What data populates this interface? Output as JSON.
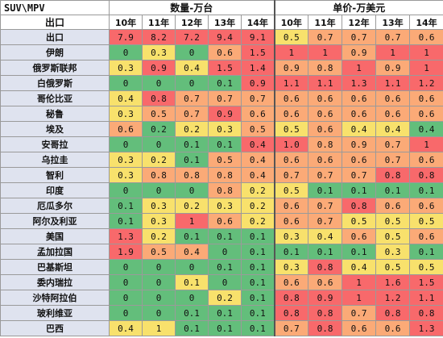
{
  "header": {
    "corner_top": "SUV\\MPV",
    "corner_bottom": "出口",
    "group_qty": "数量-万台",
    "group_price": "单价-万美元",
    "years": [
      "10年",
      "11年",
      "12年",
      "13年",
      "14年"
    ]
  },
  "colors": {
    "g": "#63be7b",
    "lg": "#a9d27f",
    "y": "#f8e16c",
    "o": "#fbaa77",
    "r": "#f8696b",
    "row_label_bg": "#dfe3ef"
  },
  "rows": [
    {
      "name": "出口",
      "qty": [
        "7.9",
        "8.2",
        "7.2",
        "9.4",
        "9.1"
      ],
      "price": [
        "0.5",
        "0.7",
        "0.7",
        "0.7",
        "0.6"
      ]
    },
    {
      "name": "伊朗",
      "qty": [
        "0",
        "0.3",
        "0",
        "0.6",
        "1.5"
      ],
      "price": [
        "1",
        "1",
        "0.9",
        "1",
        "1"
      ]
    },
    {
      "name": "俄罗斯联邦",
      "qty": [
        "0.3",
        "0.9",
        "0.4",
        "1.5",
        "1.4"
      ],
      "price": [
        "0.9",
        "0.8",
        "1",
        "0.9",
        "1"
      ]
    },
    {
      "name": "白俄罗斯",
      "qty": [
        "0",
        "0",
        "0",
        "0.1",
        "0.9"
      ],
      "price": [
        "1.1",
        "1.1",
        "1.3",
        "1.1",
        "1.2"
      ]
    },
    {
      "name": "哥伦比亚",
      "qty": [
        "0.4",
        "0.8",
        "0.7",
        "0.7",
        "0.7"
      ],
      "price": [
        "0.6",
        "0.6",
        "0.6",
        "0.6",
        "0.6"
      ]
    },
    {
      "name": "秘鲁",
      "qty": [
        "0.3",
        "0.5",
        "0.7",
        "0.9",
        "0.6"
      ],
      "price": [
        "0.6",
        "0.6",
        "0.6",
        "0.6",
        "0.6"
      ]
    },
    {
      "name": "埃及",
      "qty": [
        "0.6",
        "0.2",
        "0.2",
        "0.3",
        "0.5"
      ],
      "price": [
        "0.5",
        "0.6",
        "0.4",
        "0.4",
        "0.4"
      ]
    },
    {
      "name": "安哥拉",
      "qty": [
        "0",
        "0",
        "0.1",
        "0.1",
        "0.4"
      ],
      "price": [
        "1.0",
        "0.8",
        "0.9",
        "0.7",
        "1"
      ]
    },
    {
      "name": "乌拉圭",
      "qty": [
        "0.3",
        "0.2",
        "0.1",
        "0.5",
        "0.4"
      ],
      "price": [
        "0.6",
        "0.6",
        "0.6",
        "0.7",
        "0.6"
      ]
    },
    {
      "name": "智利",
      "qty": [
        "0.3",
        "0.8",
        "0.8",
        "0.8",
        "0.4"
      ],
      "price": [
        "0.7",
        "0.7",
        "0.7",
        "0.8",
        "0.8"
      ]
    },
    {
      "name": "印度",
      "qty": [
        "0",
        "0",
        "0",
        "0.8",
        "0.2"
      ],
      "price": [
        "0.5",
        "0.1",
        "0.1",
        "0.1",
        "0.1"
      ]
    },
    {
      "name": "厄瓜多尔",
      "qty": [
        "0.1",
        "0.3",
        "0.2",
        "0.3",
        "0.2"
      ],
      "price": [
        "0.6",
        "0.7",
        "0.8",
        "0.6",
        "0.6"
      ]
    },
    {
      "name": "阿尔及利亚",
      "qty": [
        "0.1",
        "0.3",
        "1",
        "0.6",
        "0.2"
      ],
      "price": [
        "0.6",
        "0.7",
        "0.5",
        "0.5",
        "0.5"
      ]
    },
    {
      "name": "美国",
      "qty": [
        "1.3",
        "0.2",
        "0.1",
        "0.1",
        "0.1"
      ],
      "price": [
        "0.3",
        "0.4",
        "0.6",
        "0.5",
        "0.6"
      ]
    },
    {
      "name": "孟加拉国",
      "qty": [
        "1.9",
        "0.5",
        "0.4",
        "0",
        "0.1"
      ],
      "price": [
        "0.1",
        "0.1",
        "0.1",
        "0.3",
        "0.1"
      ]
    },
    {
      "name": "巴基斯坦",
      "qty": [
        "0",
        "0",
        "0",
        "0.1",
        "0.1"
      ],
      "price": [
        "0.3",
        "0.8",
        "0.4",
        "0.5",
        "0.5"
      ]
    },
    {
      "name": "委内瑞拉",
      "qty": [
        "0",
        "0",
        "0.1",
        "0",
        "0.1"
      ],
      "price": [
        "0.6",
        "0.6",
        "1",
        "1.6",
        "1.5"
      ]
    },
    {
      "name": "沙特阿拉伯",
      "qty": [
        "0",
        "0",
        "0",
        "0.2",
        "0.1"
      ],
      "price": [
        "0.8",
        "0.9",
        "1",
        "1.2",
        "1.1"
      ]
    },
    {
      "name": "玻利维亚",
      "qty": [
        "0",
        "0",
        "0.1",
        "0.1",
        "0.1"
      ],
      "price": [
        "0.8",
        "0.8",
        "0.7",
        "0.8",
        "0.8"
      ]
    },
    {
      "name": "巴西",
      "qty": [
        "0.4",
        "1",
        "0.1",
        "0.1",
        "0.1"
      ],
      "price": [
        "0.7",
        "0.8",
        "0.6",
        "0.6",
        "1.3"
      ]
    }
  ],
  "cell_colors": [
    {
      "qty": [
        "r",
        "r",
        "r",
        "r",
        "r"
      ],
      "price": [
        "y",
        "o",
        "o",
        "o",
        "o"
      ]
    },
    {
      "qty": [
        "g",
        "y",
        "g",
        "o",
        "r"
      ],
      "price": [
        "r",
        "r",
        "o",
        "r",
        "r"
      ]
    },
    {
      "qty": [
        "y",
        "r",
        "y",
        "r",
        "r"
      ],
      "price": [
        "o",
        "o",
        "r",
        "o",
        "r"
      ]
    },
    {
      "qty": [
        "g",
        "g",
        "g",
        "g",
        "r"
      ],
      "price": [
        "r",
        "r",
        "r",
        "r",
        "r"
      ]
    },
    {
      "qty": [
        "y",
        "r",
        "o",
        "o",
        "o"
      ],
      "price": [
        "o",
        "o",
        "o",
        "o",
        "o"
      ]
    },
    {
      "qty": [
        "y",
        "o",
        "o",
        "r",
        "o"
      ],
      "price": [
        "o",
        "o",
        "o",
        "o",
        "o"
      ]
    },
    {
      "qty": [
        "o",
        "g",
        "y",
        "y",
        "o"
      ],
      "price": [
        "y",
        "o",
        "y",
        "y",
        "g"
      ]
    },
    {
      "qty": [
        "g",
        "g",
        "g",
        "g",
        "r"
      ],
      "price": [
        "r",
        "o",
        "o",
        "o",
        "r"
      ]
    },
    {
      "qty": [
        "y",
        "y",
        "g",
        "o",
        "o"
      ],
      "price": [
        "o",
        "o",
        "o",
        "o",
        "o"
      ]
    },
    {
      "qty": [
        "y",
        "o",
        "o",
        "o",
        "o"
      ],
      "price": [
        "o",
        "o",
        "o",
        "r",
        "r"
      ]
    },
    {
      "qty": [
        "g",
        "g",
        "g",
        "o",
        "y"
      ],
      "price": [
        "y",
        "g",
        "g",
        "g",
        "g"
      ]
    },
    {
      "qty": [
        "g",
        "y",
        "y",
        "y",
        "y"
      ],
      "price": [
        "o",
        "o",
        "r",
        "o",
        "o"
      ]
    },
    {
      "qty": [
        "g",
        "y",
        "r",
        "o",
        "y"
      ],
      "price": [
        "o",
        "o",
        "y",
        "y",
        "y"
      ]
    },
    {
      "qty": [
        "r",
        "y",
        "g",
        "g",
        "g"
      ],
      "price": [
        "y",
        "y",
        "o",
        "y",
        "o"
      ]
    },
    {
      "qty": [
        "r",
        "o",
        "o",
        "g",
        "g"
      ],
      "price": [
        "g",
        "g",
        "g",
        "y",
        "g"
      ]
    },
    {
      "qty": [
        "g",
        "g",
        "g",
        "g",
        "g"
      ],
      "price": [
        "y",
        "r",
        "y",
        "y",
        "y"
      ]
    },
    {
      "qty": [
        "g",
        "g",
        "y",
        "g",
        "g"
      ],
      "price": [
        "o",
        "o",
        "r",
        "r",
        "r"
      ]
    },
    {
      "qty": [
        "g",
        "g",
        "g",
        "y",
        "g"
      ],
      "price": [
        "r",
        "r",
        "r",
        "r",
        "r"
      ]
    },
    {
      "qty": [
        "g",
        "g",
        "g",
        "g",
        "g"
      ],
      "price": [
        "r",
        "r",
        "o",
        "r",
        "r"
      ]
    },
    {
      "qty": [
        "y",
        "y",
        "g",
        "g",
        "g"
      ],
      "price": [
        "o",
        "r",
        "o",
        "o",
        "r"
      ]
    }
  ]
}
